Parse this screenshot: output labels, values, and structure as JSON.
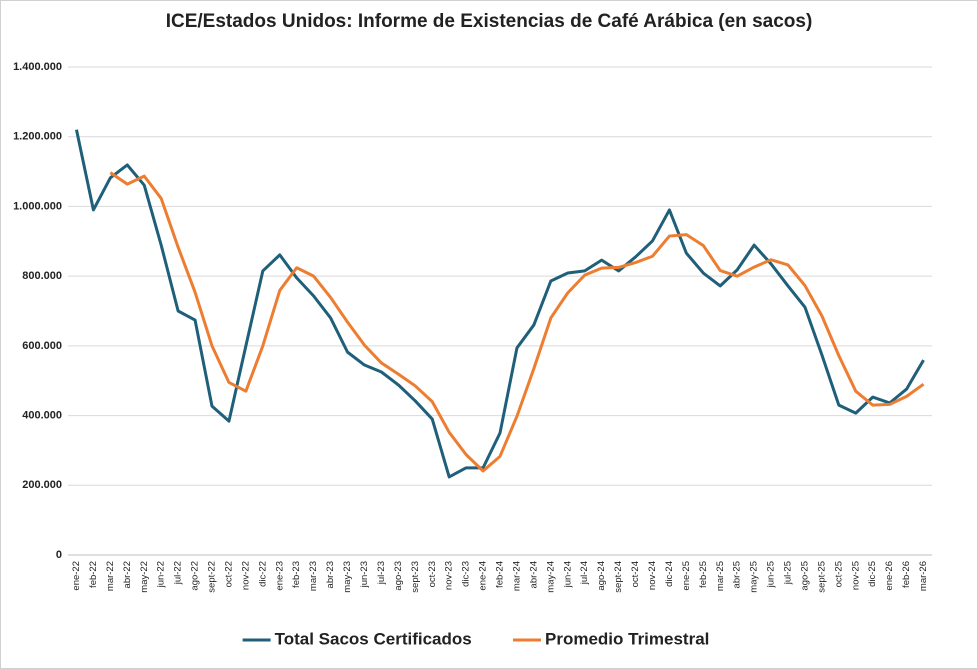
{
  "chart_data": {
    "type": "line",
    "title": "ICE/Estados Unidos: Informe de Existencias de Café Arábica (en sacos)",
    "categories": [
      "ene-22",
      "feb-22",
      "mar-22",
      "abr-22",
      "may-22",
      "jun-22",
      "jul-22",
      "ago-22",
      "sept-22",
      "oct-22",
      "nov-22",
      "dic-22",
      "ene-23",
      "feb-23",
      "mar-23",
      "abr-23",
      "may-23",
      "jun-23",
      "jul-23",
      "ago-23",
      "sept-23",
      "oct-23",
      "nov-23",
      "dic-23",
      "ene-24",
      "feb-24",
      "mar-24",
      "abr-24",
      "may-24",
      "jun-24",
      "jul-24",
      "ago-24",
      "sept-24",
      "oct-24",
      "nov-24",
      "dic-24",
      "ene-25",
      "feb-25",
      "mar-25",
      "abr-25",
      "may-25",
      "jun-25",
      "jul-25",
      "ago-25",
      "sept-25",
      "oct-25",
      "nov-25",
      "dic-25",
      "ene-26",
      "feb-26",
      "mar-26"
    ],
    "series": [
      {
        "name": "Total Sacos Certificados",
        "color": "#1f5f7a",
        "values": [
          1220000,
          990000,
          1082000,
          1119000,
          1061000,
          889000,
          700000,
          674000,
          427000,
          384000,
          600000,
          815000,
          861000,
          795000,
          743000,
          680000,
          582000,
          545000,
          525000,
          488000,
          442000,
          390000,
          224000,
          250000,
          250000,
          350000,
          594000,
          660000,
          786000,
          809000,
          815000,
          846000,
          815000,
          855000,
          901000,
          990000,
          866000,
          809000,
          772000,
          818000,
          889000,
          835000,
          772000,
          711000,
          574000,
          430000,
          407000,
          453000,
          436000,
          476000,
          559000
        ]
      },
      {
        "name": "Promedio Trimestral",
        "color": "#ed7d31",
        "values": [
          null,
          null,
          1097000,
          1064000,
          1087000,
          1023000,
          883000,
          754000,
          600000,
          495000,
          470000,
          600000,
          759000,
          824000,
          800000,
          739000,
          668000,
          602000,
          551000,
          519000,
          485000,
          440000,
          352000,
          288000,
          241000,
          283000,
          398000,
          535000,
          680000,
          752000,
          803000,
          823000,
          825000,
          839000,
          857000,
          915000,
          919000,
          888000,
          816000,
          800000,
          826000,
          847000,
          832000,
          773000,
          686000,
          572000,
          470000,
          430000,
          432000,
          455000,
          490000
        ]
      }
    ],
    "ylim": [
      0,
      1400000
    ],
    "yticks": [
      0,
      {
        "value": 200000,
        "label": "200.000"
      },
      {
        "value": 400000,
        "label": "400.000"
      },
      {
        "value": 600000,
        "label": "600.000"
      },
      {
        "value": 800000,
        "label": "800.000"
      },
      {
        "value": 1000000,
        "label": "1.000.000"
      },
      {
        "value": 1200000,
        "label": "1.200.000"
      },
      {
        "value": 1400000,
        "label": "1.400.000"
      }
    ],
    "grid": true,
    "legend": "bottom"
  }
}
